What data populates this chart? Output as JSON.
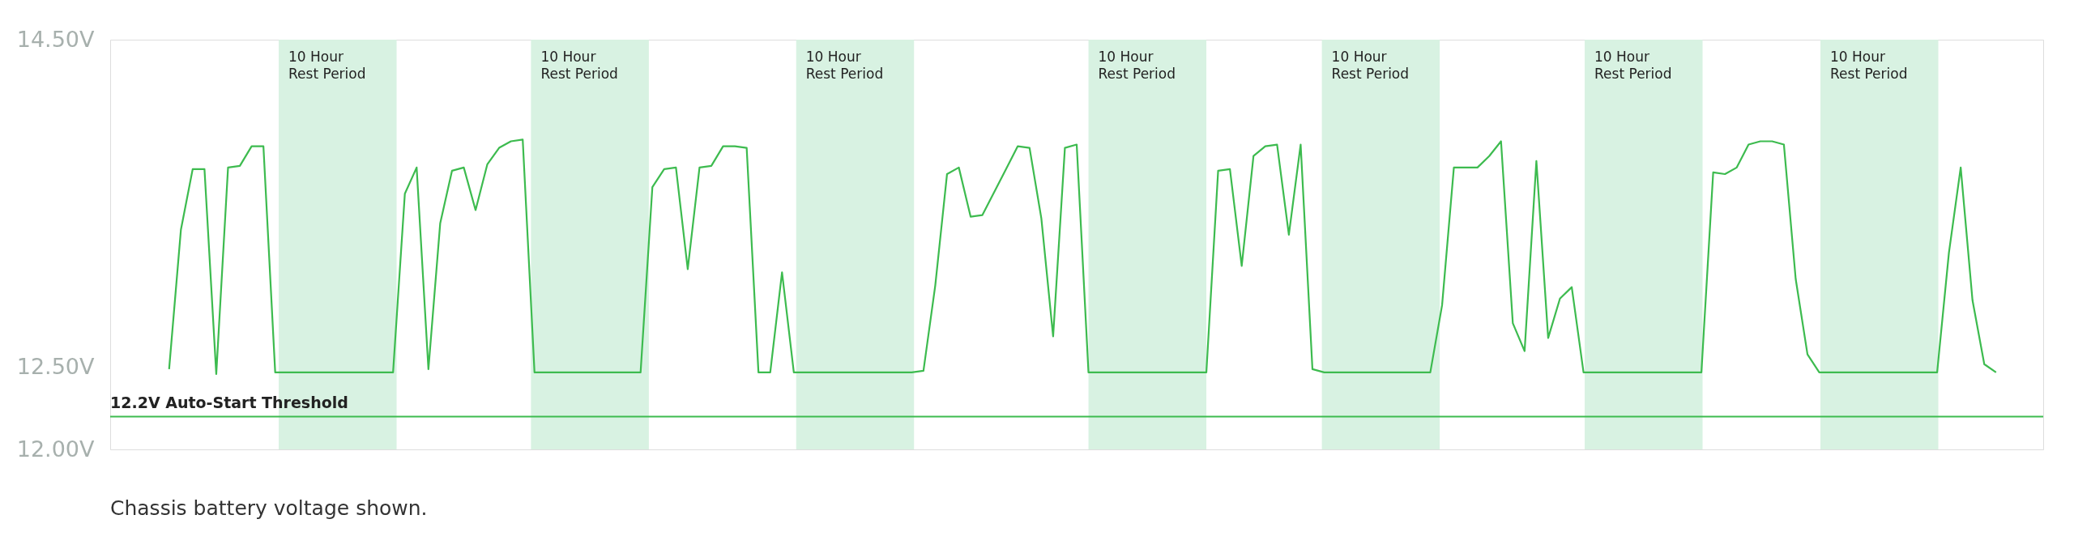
{
  "chart_data": {
    "type": "line",
    "categories": [
      null,
      null,
      null,
      null,
      null,
      null,
      null,
      null,
      null,
      null,
      null,
      null,
      null,
      null,
      null,
      null,
      null,
      null,
      null,
      null,
      null,
      null,
      null,
      null,
      null,
      null,
      null,
      null,
      null,
      null,
      null,
      null,
      null,
      null,
      null,
      null,
      null,
      null,
      null,
      null,
      null,
      null,
      null,
      null,
      null,
      null,
      null,
      null,
      null,
      null,
      null,
      null,
      null,
      null,
      null,
      null,
      null,
      null,
      null,
      null,
      null,
      null,
      null,
      null,
      null,
      null,
      null,
      null,
      null,
      null,
      null,
      null,
      null,
      null,
      null,
      null,
      null,
      null,
      null,
      null,
      null,
      null,
      null,
      null,
      null,
      null,
      null,
      null,
      null,
      null,
      null,
      null,
      null,
      null,
      null,
      null,
      null,
      null,
      null,
      null,
      null,
      null,
      null,
      null,
      null,
      null,
      null,
      null,
      null,
      null,
      null,
      null,
      null,
      null,
      null,
      null,
      null,
      null,
      null,
      null,
      null,
      null,
      null,
      null,
      null,
      null,
      null,
      null,
      null,
      null,
      null,
      null,
      null,
      null,
      null,
      null,
      null,
      null,
      null,
      null,
      null,
      null,
      null,
      null,
      null,
      null,
      null,
      null,
      null,
      null,
      null,
      null,
      null,
      null,
      null,
      null,
      null,
      null,
      null,
      null,
      null,
      null,
      null,
      null,
      null
    ],
    "ylim": [
      12,
      14.5
    ],
    "yticks": [
      {
        "value": 12,
        "label": "12.00V"
      },
      {
        "value": 12.5,
        "label": "12.50V"
      },
      {
        "value": 14.5,
        "label": "14.50V"
      }
    ],
    "tick_labels": "y",
    "grid": false,
    "marker": "none",
    "line_style": "solid",
    "series": [
      {
        "color": "#3dbb4f",
        "values": [
          null,
          null,
          null,
          null,
          null,
          12.49,
          13.34,
          13.71,
          13.71,
          12.46,
          13.72,
          13.73,
          13.85,
          13.85,
          12.47,
          12.47,
          12.47,
          12.47,
          12.47,
          12.47,
          12.47,
          12.47,
          12.47,
          12.47,
          12.47,
          13.56,
          13.72,
          12.49,
          13.38,
          13.7,
          13.72,
          13.46,
          13.74,
          13.84,
          13.88,
          13.89,
          12.47,
          12.47,
          12.47,
          12.47,
          12.47,
          12.47,
          12.47,
          12.47,
          12.47,
          12.47,
          13.6,
          13.71,
          13.72,
          13.1,
          13.72,
          13.73,
          13.85,
          13.85,
          13.84,
          12.47,
          12.47,
          13.08,
          12.47,
          12.47,
          12.47,
          12.47,
          12.47,
          12.47,
          12.47,
          12.47,
          12.47,
          12.47,
          12.47,
          12.48,
          13.0,
          13.68,
          13.72,
          13.42,
          13.43,
          13.57,
          13.71,
          13.85,
          13.84,
          13.41,
          12.69,
          13.84,
          13.86,
          12.47,
          12.47,
          12.47,
          12.47,
          12.47,
          12.47,
          12.47,
          12.47,
          12.47,
          12.47,
          12.47,
          13.7,
          13.71,
          13.12,
          13.79,
          13.85,
          13.86,
          13.31,
          13.86,
          12.49,
          12.47,
          12.47,
          12.47,
          12.47,
          12.47,
          12.47,
          12.47,
          12.47,
          12.47,
          12.47,
          12.88,
          13.72,
          13.72,
          13.72,
          13.79,
          13.88,
          12.77,
          12.6,
          13.76,
          12.68,
          12.92,
          12.99,
          12.47,
          12.47,
          12.47,
          12.47,
          12.47,
          12.47,
          12.47,
          12.47,
          12.47,
          12.47,
          12.47,
          13.69,
          13.68,
          13.72,
          13.86,
          13.88,
          13.88,
          13.86,
          13.04,
          12.58,
          12.47,
          12.47,
          12.47,
          12.47,
          12.47,
          12.47,
          12.47,
          12.47,
          12.47,
          12.47,
          12.47,
          13.2,
          13.72,
          12.91,
          12.52,
          12.47,
          null,
          null,
          null,
          null
        ]
      }
    ],
    "ref_lines": [
      {
        "axis": "y",
        "value": 12.2,
        "label": "12.2V Auto-Start Threshold",
        "color": "#3dbb4f",
        "line_style": "solid"
      }
    ],
    "annotations": [
      "10 Hour\nRest Period",
      "10 Hour\nRest Period",
      "10 Hour\nRest Period",
      "10 Hour\nRest Period",
      "10 Hour\nRest Period",
      "10 Hour\nRest Period",
      "10 Hour\nRest Period",
      "Chassis battery voltage shown."
    ]
  }
}
